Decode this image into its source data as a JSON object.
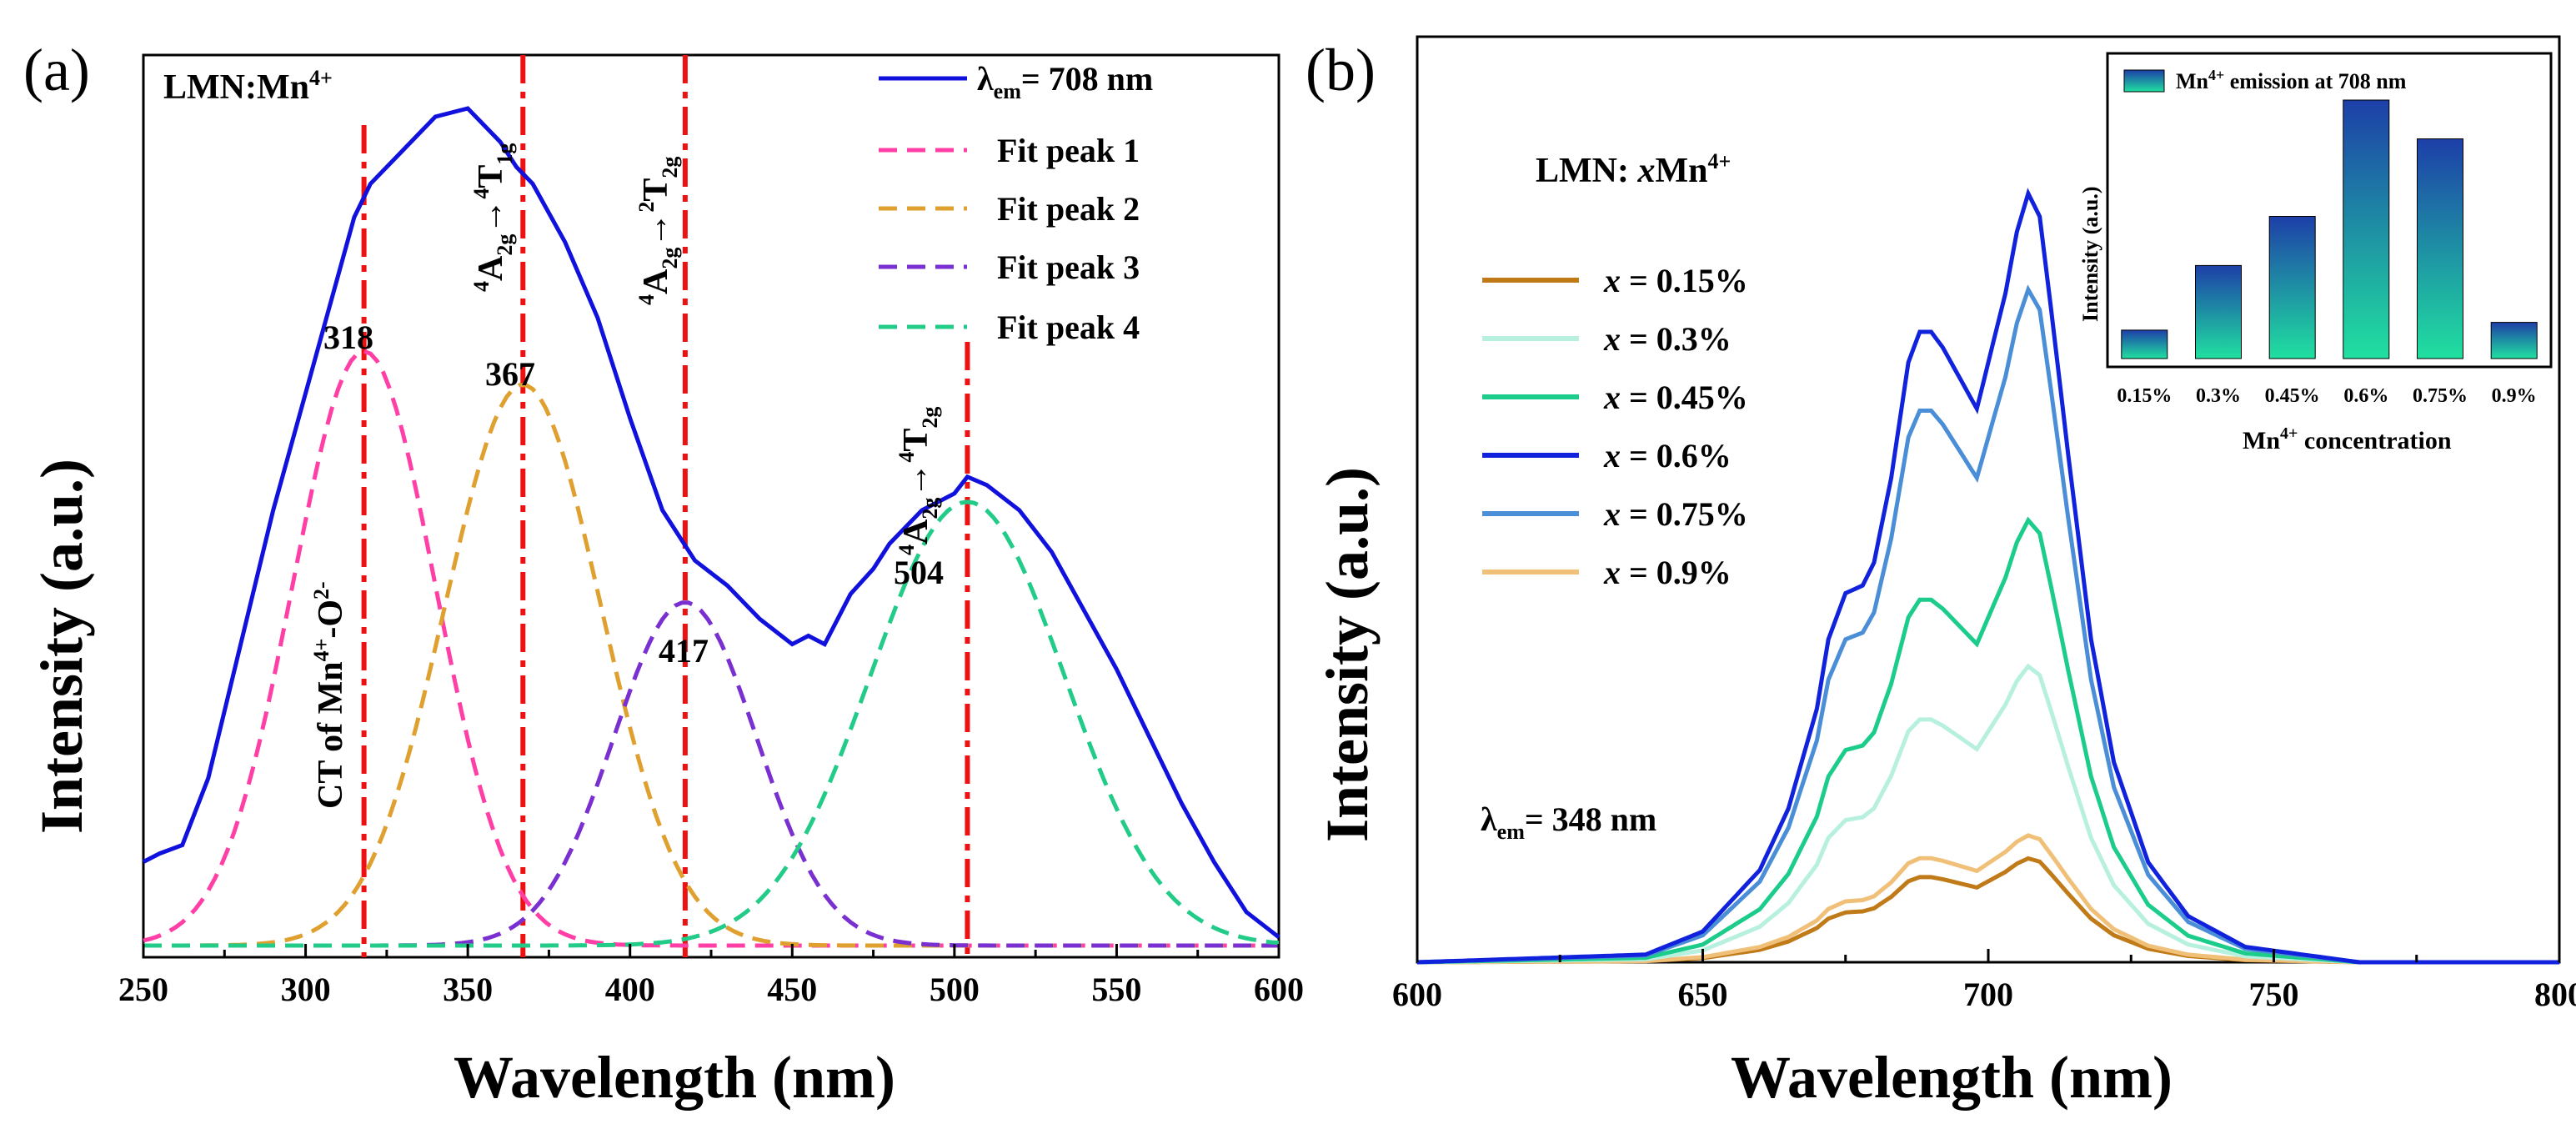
{
  "chart_data": [
    {
      "type": "line",
      "panel_label": "(a)",
      "title": "LMN:Mn4+",
      "xlabel": "Wavelength (nm)",
      "ylabel": "Intensity (a.u.)",
      "xlim": [
        250,
        600
      ],
      "ylim": [
        0,
        1.0
      ],
      "xticks": [
        250,
        300,
        350,
        400,
        450,
        500,
        550,
        600
      ],
      "series": [
        {
          "name": "λem = 708 nm",
          "legend": "= 708 nm",
          "legend_sym": "λ",
          "legend_sub": "em",
          "color": "#1111dd",
          "style": "solid",
          "x": [
            250,
            255,
            262,
            270,
            280,
            290,
            300,
            310,
            315,
            320,
            330,
            340,
            350,
            360,
            365,
            370,
            380,
            390,
            400,
            410,
            420,
            430,
            440,
            450,
            455,
            460,
            468,
            475,
            480,
            490,
            500,
            504,
            510,
            520,
            530,
            540,
            550,
            560,
            570,
            580,
            590,
            600
          ],
          "y": [
            0.1,
            0.11,
            0.12,
            0.2,
            0.36,
            0.52,
            0.66,
            0.8,
            0.87,
            0.91,
            0.95,
            0.99,
            1.0,
            0.96,
            0.93,
            0.91,
            0.84,
            0.75,
            0.63,
            0.52,
            0.46,
            0.43,
            0.39,
            0.36,
            0.37,
            0.36,
            0.42,
            0.45,
            0.48,
            0.52,
            0.54,
            0.56,
            0.55,
            0.52,
            0.47,
            0.4,
            0.33,
            0.25,
            0.17,
            0.1,
            0.04,
            0.01
          ]
        },
        {
          "name": "Fit peak 1",
          "legend": "Fit peak 1",
          "color": "#ff3fa6",
          "style": "dashed",
          "center": 318,
          "amplitude": 0.71,
          "sigma": 22
        },
        {
          "name": "Fit peak 2",
          "legend": "Fit peak 2",
          "color": "#e0a030",
          "style": "dashed",
          "center": 367,
          "amplitude": 0.67,
          "sigma": 24
        },
        {
          "name": "Fit peak 3",
          "legend": "Fit peak 3",
          "color": "#7a2fd0",
          "style": "dashed",
          "center": 417,
          "amplitude": 0.41,
          "sigma": 22
        },
        {
          "name": "Fit peak 4",
          "legend": "Fit peak 4",
          "color": "#22cc88",
          "style": "dashed",
          "center": 504,
          "amplitude": 0.53,
          "sigma": 30
        }
      ],
      "vlines": [
        318,
        367,
        417,
        504
      ],
      "vline_color": "#ee1111",
      "peak_labels": [
        "318",
        "367",
        "417",
        "504"
      ],
      "transition_labels": {
        "ct_a": "CT of Mn",
        "ct_sup": "4+",
        "ct_b": "-O",
        "ct_sup2": "2-",
        "t1": "A",
        "t1_pre": "4",
        "t1_sub": "2g",
        "t1_arrow": "→",
        "t1_pre2": "4",
        "t1_b": "T",
        "t1_sub2": "1g",
        "t2": "A",
        "t2_pre": "4",
        "t2_sub": "2g",
        "t2_arrow": "→",
        "t2_pre2": "2",
        "t2_b": "T",
        "t2_sub2": "2g",
        "t3": "A",
        "t3_pre": "4",
        "t3_sub": "2g",
        "t3_arrow": "→",
        "t3_pre2": "4",
        "t3_b": "T",
        "t3_sub2": "2g"
      },
      "title_parts": {
        "main": "LMN:Mn",
        "sup": "4+"
      }
    },
    {
      "type": "line",
      "panel_label": "(b)",
      "title": "LMN: xMn4+",
      "title_parts": {
        "a": "LMN: ",
        "b": "x",
        "c": "Mn",
        "sup": "4+"
      },
      "xlabel": "Wavelength (nm)",
      "ylabel": "Intensity (a.u.)",
      "xlim": [
        600,
        800
      ],
      "ylim": [
        0,
        1.0
      ],
      "xticks": [
        600,
        650,
        700,
        750,
        800
      ],
      "annotation": {
        "sym": "λ",
        "sub": "em",
        "text": "= 348 nm"
      },
      "base_profile": {
        "x": [
          600,
          640,
          650,
          660,
          665,
          670,
          672,
          675,
          678,
          680,
          683,
          686,
          688,
          690,
          692,
          695,
          698,
          700,
          703,
          705,
          707,
          709,
          711,
          714,
          718,
          722,
          728,
          735,
          745,
          755,
          765,
          780,
          800
        ],
        "y": [
          0.0,
          0.01,
          0.04,
          0.12,
          0.2,
          0.33,
          0.42,
          0.48,
          0.49,
          0.52,
          0.63,
          0.78,
          0.82,
          0.82,
          0.8,
          0.76,
          0.72,
          0.78,
          0.87,
          0.95,
          1.0,
          0.97,
          0.85,
          0.66,
          0.42,
          0.26,
          0.13,
          0.06,
          0.02,
          0.01,
          0.0,
          0.0,
          0.0
        ]
      },
      "series": [
        {
          "name": "x = 0.15%",
          "legend_x": "x",
          "legend_rest": " = 0.15%",
          "color": "#c07a18",
          "peak": 0.135
        },
        {
          "name": "x = 0.3%",
          "legend_x": "x",
          "legend_rest": " = 0.3%",
          "color": "#b8f0e0",
          "peak": 0.385
        },
        {
          "name": "x = 0.45%",
          "legend_x": "x",
          "legend_rest": " = 0.45%",
          "color": "#1ccc8a",
          "peak": 0.575
        },
        {
          "name": "x = 0.6%",
          "legend_x": "x",
          "legend_rest": " = 0.6%",
          "color": "#1122dd",
          "peak": 1.0
        },
        {
          "name": "x = 0.75%",
          "legend_x": "x",
          "legend_rest": " = 0.75%",
          "color": "#4b8ed8",
          "peak": 0.875
        },
        {
          "name": "x = 0.9%",
          "legend_x": "x",
          "legend_rest": " = 0.9%",
          "color": "#f0c078",
          "peak": 0.165
        }
      ],
      "inset": {
        "type": "bar",
        "categories": [
          "0.15%",
          "0.3%",
          "0.45%",
          "0.6%",
          "0.75%",
          "0.9%"
        ],
        "values": [
          0.11,
          0.36,
          0.55,
          1.0,
          0.85,
          0.14
        ],
        "ylim": [
          0,
          1.0
        ],
        "xlabel": "Mn4+ concentration",
        "xlabel_parts": {
          "a": "Mn",
          "sup": "4+",
          "b": " concentration"
        },
        "ylabel": "Intensity (a.u.)",
        "legend_parts": {
          "a": "Mn",
          "sup": "4+",
          "b": " emission at 708 nm"
        },
        "bar_top_color": "#1d3fa8",
        "bar_bottom_color": "#20e0a0"
      }
    }
  ]
}
